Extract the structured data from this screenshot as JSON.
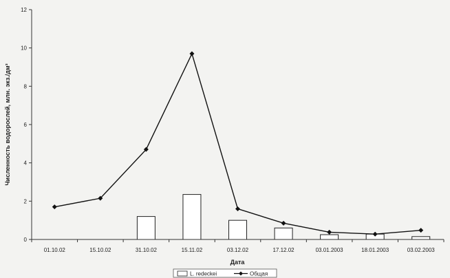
{
  "chart_data": {
    "type": "bar",
    "categories": [
      "01.10.02",
      "15.10.02",
      "31.10.02",
      "15.11.02",
      "03.12.02",
      "17.12.02",
      "03.01.2003",
      "18.01.2003",
      "03.02.2003"
    ],
    "series": [
      {
        "name": "L. redeckei",
        "kind": "bar",
        "values": [
          0,
          0,
          1.2,
          2.35,
          1.0,
          0.6,
          0.25,
          0.28,
          0.15
        ]
      },
      {
        "name": "Общая",
        "kind": "line",
        "values": [
          1.7,
          2.15,
          4.7,
          9.7,
          1.6,
          0.85,
          0.38,
          0.28,
          0.48
        ]
      }
    ],
    "ylabel": "Численность водорослей, млн. экз./дм³",
    "xlabel": "Дата",
    "ylim": [
      0,
      12
    ],
    "yticks": [
      0,
      2,
      4,
      6,
      8,
      10,
      12
    ],
    "legend_position": "bottom",
    "colors": {
      "bar_fill": "#ffffff",
      "bar_stroke": "#222222",
      "line": "#111111",
      "axis": "#333333"
    }
  }
}
